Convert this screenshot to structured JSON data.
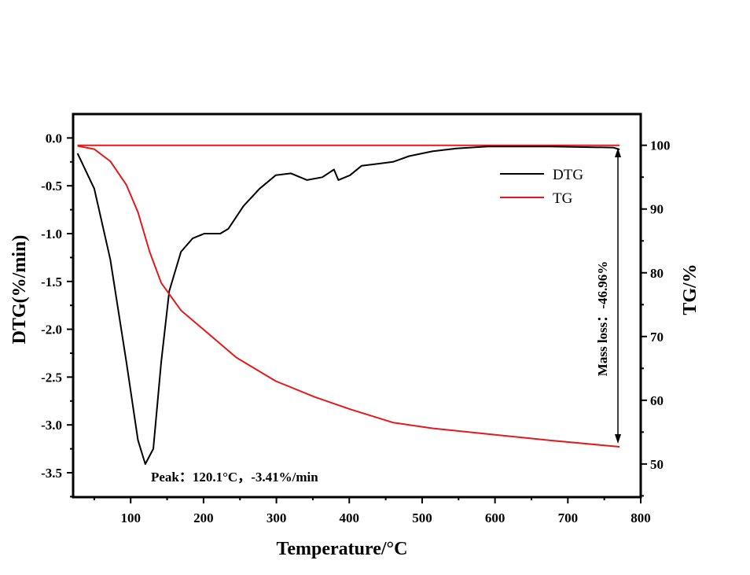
{
  "chart_data": {
    "type": "line",
    "title": "",
    "xlabel": "Temperature/°C",
    "ylabel_left": "DTG(%/min)",
    "ylabel_right": "TG/%",
    "xlim": [
      21,
      800
    ],
    "ylim_left": [
      -3.755,
      0.25
    ],
    "ylim_right": [
      44.8,
      104.9
    ],
    "x_ticks": [
      100,
      200,
      300,
      400,
      500,
      600,
      700,
      800
    ],
    "x_tick_labels": [
      "100",
      "200",
      "300",
      "400",
      "500",
      "600",
      "700",
      "800"
    ],
    "y_left_ticks": [
      0.0,
      -0.5,
      -1.0,
      -1.5,
      -2.0,
      -2.5,
      -3.0,
      -3.5
    ],
    "y_left_tick_labels": [
      "0.0",
      "-0.5",
      "-1.0",
      "-1.5",
      "-2.0",
      "-2.5",
      "-3.0",
      "-3.5"
    ],
    "y_right_ticks": [
      100,
      90,
      80,
      70,
      60,
      50
    ],
    "y_right_tick_labels": [
      "100",
      "90",
      "80",
      "70",
      "60",
      "50"
    ],
    "grid": false,
    "legend_position": "top-right",
    "series": [
      {
        "name": "DTG",
        "axis": "left",
        "color": "#000000",
        "x": [
          27,
          50,
          72,
          94,
          110,
          120,
          131,
          142,
          153,
          169,
          185,
          201,
          223,
          234,
          255,
          277,
          299,
          320,
          342,
          363,
          379,
          385,
          401,
          417,
          439,
          460,
          482,
          514,
          547,
          590,
          676,
          762,
          771
        ],
        "y": [
          -0.16,
          -0.53,
          -1.27,
          -2.34,
          -3.16,
          -3.41,
          -3.25,
          -2.34,
          -1.6,
          -1.19,
          -1.05,
          -1.0,
          -1.0,
          -0.95,
          -0.71,
          -0.53,
          -0.39,
          -0.37,
          -0.44,
          -0.41,
          -0.33,
          -0.44,
          -0.39,
          -0.29,
          -0.27,
          -0.25,
          -0.19,
          -0.14,
          -0.11,
          -0.09,
          -0.09,
          -0.1,
          -0.12
        ]
      },
      {
        "name": "TG",
        "axis": "right",
        "color": "#e31a1c",
        "x": [
          27,
          50,
          72,
          94,
          110,
          126,
          142,
          169,
          201,
          245,
          299,
          353,
          401,
          460,
          514,
          590,
          676,
          771
        ],
        "y": [
          99.9,
          99.4,
          97.5,
          93.8,
          89.5,
          83.3,
          78.4,
          74.1,
          71.0,
          66.7,
          63.0,
          60.5,
          58.6,
          56.5,
          55.6,
          54.7,
          53.7,
          52.7
        ]
      }
    ],
    "reference_line": {
      "axis": "right",
      "value": 100,
      "color": "#e31a1c"
    },
    "annotations": {
      "peak": "Peak：120.1°C，-3.41%/min",
      "mass_loss": "Mass loss：-46.96%"
    }
  }
}
